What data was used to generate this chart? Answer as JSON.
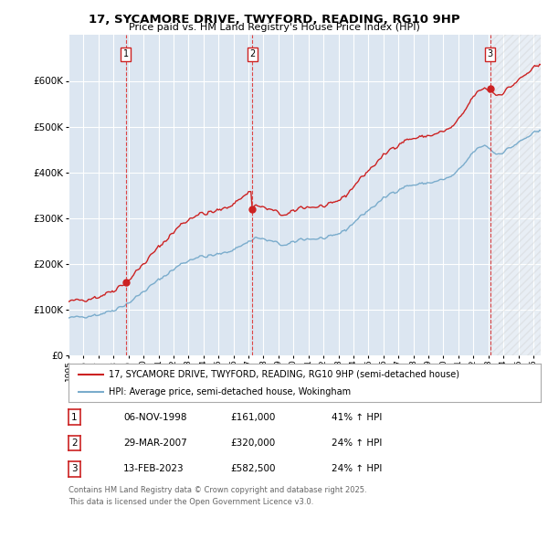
{
  "title": "17, SYCAMORE DRIVE, TWYFORD, READING, RG10 9HP",
  "subtitle": "Price paid vs. HM Land Registry's House Price Index (HPI)",
  "background_color": "#ffffff",
  "plot_bg_color": "#dce6f1",
  "grid_color": "#ffffff",
  "purchase_prices": [
    161000,
    320000,
    582500
  ],
  "purchase_labels": [
    "1",
    "2",
    "3"
  ],
  "legend_line1": "17, SYCAMORE DRIVE, TWYFORD, READING, RG10 9HP (semi-detached house)",
  "legend_line2": "HPI: Average price, semi-detached house, Wokingham",
  "table_entries": [
    {
      "num": "1",
      "date": "06-NOV-1998",
      "price": "£161,000",
      "hpi": "41% ↑ HPI"
    },
    {
      "num": "2",
      "date": "29-MAR-2007",
      "price": "£320,000",
      "hpi": "24% ↑ HPI"
    },
    {
      "num": "3",
      "date": "13-FEB-2023",
      "price": "£582,500",
      "hpi": "24% ↑ HPI"
    }
  ],
  "footnote1": "Contains HM Land Registry data © Crown copyright and database right 2025.",
  "footnote2": "This data is licensed under the Open Government Licence v3.0.",
  "red_color": "#cc2222",
  "blue_color": "#7aaccc",
  "vline_color": "#dd4444",
  "ylim": [
    0,
    700000
  ],
  "yticks": [
    0,
    100000,
    200000,
    300000,
    400000,
    500000,
    600000
  ],
  "xstart": 1995.0,
  "xend": 2026.5,
  "purchase_year_floats": [
    1998.836,
    2007.247,
    2023.12
  ]
}
